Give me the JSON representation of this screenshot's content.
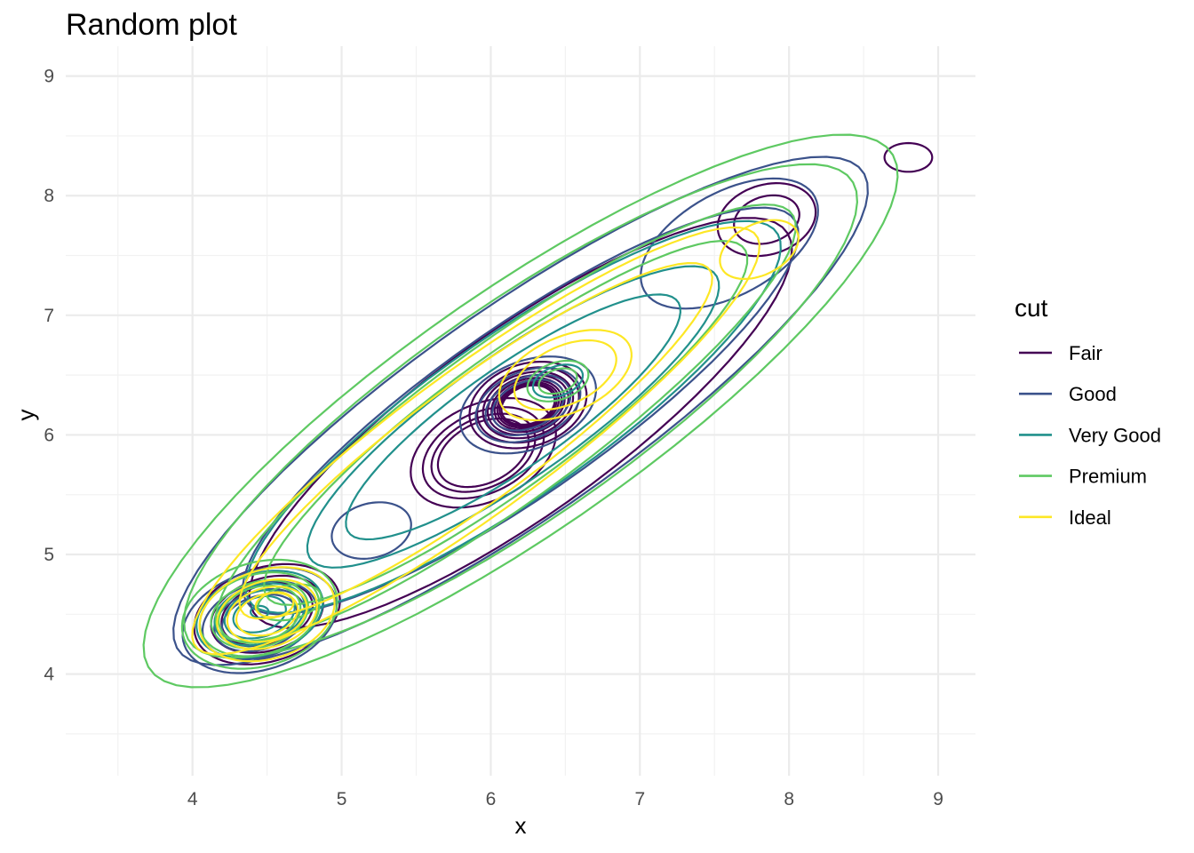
{
  "chart_data": {
    "type": "line",
    "subtype": "2d-density-contour",
    "title": "Random plot",
    "xlabel": "x",
    "ylabel": "y",
    "xlim": [
      3.15,
      9.25
    ],
    "ylim": [
      3.15,
      9.25
    ],
    "x_ticks": [
      4,
      5,
      6,
      7,
      8,
      9
    ],
    "y_ticks": [
      4,
      5,
      6,
      7,
      8,
      9
    ],
    "grid": true,
    "legend": {
      "title": "cut",
      "position": "right"
    },
    "series": [
      {
        "name": "Fair",
        "color": "#440154",
        "modes": [
          {
            "cx": 6.25,
            "cy": 6.25,
            "sx": 0.42,
            "sy": 0.33,
            "angle": 35,
            "levels": [
              1.0,
              1.15,
              1.3,
              1.45,
              1.6,
              1.75,
              1.9,
              2.05,
              2.2
            ]
          },
          {
            "cx": 5.95,
            "cy": 5.85,
            "sx": 0.55,
            "sy": 0.38,
            "angle": 40,
            "levels": [
              1.0,
              1.2,
              1.4,
              1.6
            ]
          },
          {
            "cx": 4.5,
            "cy": 4.5,
            "sx": 0.52,
            "sy": 0.38,
            "angle": 30,
            "levels": [
              1.0,
              1.3,
              1.6
            ]
          },
          {
            "cx": 7.85,
            "cy": 7.8,
            "sx": 0.35,
            "sy": 0.28,
            "angle": 35,
            "levels": [
              1.0,
              1.5
            ]
          },
          {
            "cx": 8.8,
            "cy": 8.32,
            "sx": 0.16,
            "sy": 0.12,
            "angle": 0,
            "levels": [
              1.0
            ]
          },
          {
            "cx": 6.2,
            "cy": 6.1,
            "sx": 2.4,
            "sy": 0.7,
            "angle": 43,
            "levels": [
              1.0
            ]
          }
        ]
      },
      {
        "name": "Good",
        "color": "#3b528b",
        "modes": [
          {
            "cx": 6.2,
            "cy": 6.2,
            "sx": 3.05,
            "sy": 0.8,
            "angle": 42,
            "levels": [
              1.0,
              1.25
            ]
          },
          {
            "cx": 6.25,
            "cy": 6.25,
            "sx": 0.5,
            "sy": 0.35,
            "angle": 35,
            "levels": [
              1.0,
              1.3,
              1.6,
              1.9
            ]
          },
          {
            "cx": 4.45,
            "cy": 4.45,
            "sx": 0.55,
            "sy": 0.4,
            "angle": 30,
            "levels": [
              1.0,
              1.35,
              1.7,
              2.05
            ]
          },
          {
            "cx": 5.2,
            "cy": 5.2,
            "sx": 0.28,
            "sy": 0.22,
            "angle": 30,
            "levels": [
              1.0
            ]
          },
          {
            "cx": 7.6,
            "cy": 7.6,
            "sx": 0.7,
            "sy": 0.4,
            "angle": 40,
            "levels": [
              1.0
            ]
          }
        ]
      },
      {
        "name": "Very Good",
        "color": "#21908c",
        "modes": [
          {
            "cx": 6.15,
            "cy": 6.15,
            "sx": 2.35,
            "sy": 0.62,
            "angle": 42,
            "levels": [
              1.0,
              1.3,
              1.6
            ]
          },
          {
            "cx": 6.45,
            "cy": 6.45,
            "sx": 0.18,
            "sy": 0.12,
            "angle": 30,
            "levels": [
              1.0
            ]
          },
          {
            "cx": 4.45,
            "cy": 4.5,
            "sx": 0.45,
            "sy": 0.33,
            "angle": 30,
            "levels": [
              1.0,
              1.4,
              1.8,
              2.4
            ]
          },
          {
            "cx": 4.45,
            "cy": 4.52,
            "sx": 0.06,
            "sy": 0.05,
            "angle": 0,
            "levels": [
              1.0
            ]
          }
        ]
      },
      {
        "name": "Premium",
        "color": "#5ec962",
        "modes": [
          {
            "cx": 6.2,
            "cy": 6.2,
            "sx": 3.3,
            "sy": 0.92,
            "angle": 42,
            "levels": [
              1.0,
              1.12
            ]
          },
          {
            "cx": 6.1,
            "cy": 6.1,
            "sx": 2.6,
            "sy": 0.6,
            "angle": 43,
            "levels": [
              1.0,
              1.2
            ]
          },
          {
            "cx": 6.45,
            "cy": 6.45,
            "sx": 0.22,
            "sy": 0.15,
            "angle": 30,
            "levels": [
              1.0,
              1.6
            ]
          },
          {
            "cx": 4.45,
            "cy": 4.5,
            "sx": 0.55,
            "sy": 0.42,
            "angle": 30,
            "levels": [
              1.0,
              1.3,
              1.6,
              1.9
            ]
          },
          {
            "cx": 4.65,
            "cy": 4.6,
            "sx": 0.22,
            "sy": 0.14,
            "angle": 20,
            "levels": [
              1.0
            ]
          }
        ]
      },
      {
        "name": "Ideal",
        "color": "#fde725",
        "modes": [
          {
            "cx": 5.9,
            "cy": 5.95,
            "sx": 2.55,
            "sy": 0.55,
            "angle": 43,
            "levels": [
              1.0,
              1.2
            ]
          },
          {
            "cx": 6.5,
            "cy": 6.5,
            "sx": 0.5,
            "sy": 0.3,
            "angle": 35,
            "levels": [
              1.0,
              1.3
            ]
          },
          {
            "cx": 7.8,
            "cy": 7.55,
            "sx": 0.3,
            "sy": 0.2,
            "angle": 40,
            "levels": [
              1.0
            ]
          },
          {
            "cx": 4.5,
            "cy": 4.5,
            "sx": 0.48,
            "sy": 0.36,
            "angle": 30,
            "levels": [
              1.0,
              1.35,
              1.7,
              2.2
            ]
          },
          {
            "cx": 4.55,
            "cy": 4.58,
            "sx": 0.13,
            "sy": 0.1,
            "angle": 20,
            "levels": [
              1.0
            ]
          }
        ]
      }
    ]
  }
}
